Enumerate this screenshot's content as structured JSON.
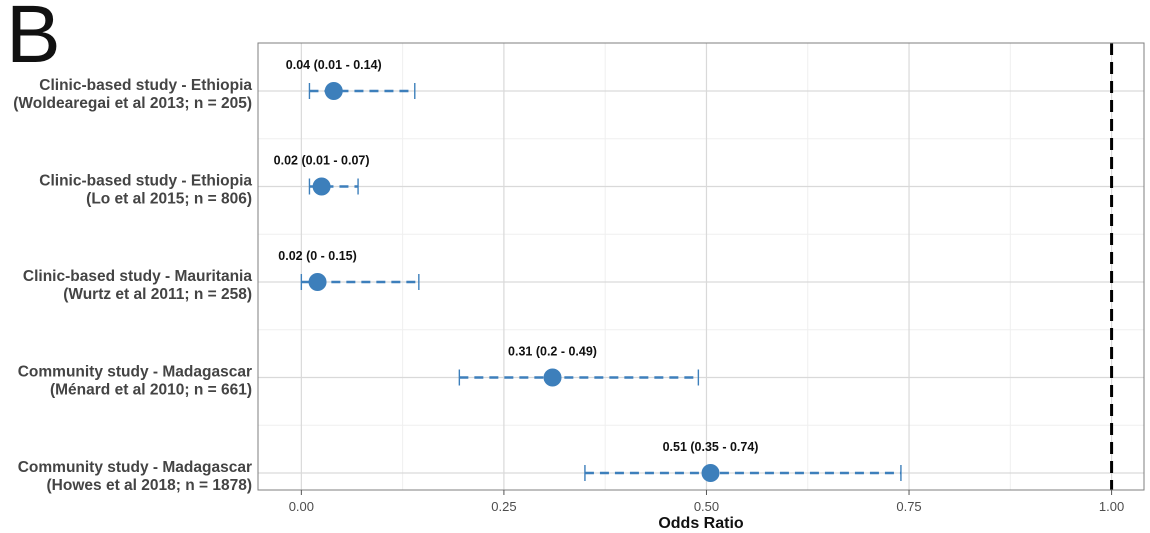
{
  "panel_letter": "B",
  "chart_data": {
    "type": "scatter",
    "subtype": "forest-plot",
    "title": "",
    "xlabel": "Odds Ratio",
    "ylabel": "",
    "xlim": [
      -0.0535,
      1.04
    ],
    "x_ticks": [
      0.0,
      0.25,
      0.5,
      0.75,
      1.0
    ],
    "x_tick_labels": [
      "0.00",
      "0.25",
      "0.50",
      "0.75",
      "1.00"
    ],
    "grid": true,
    "reference_line": 1.0,
    "colors": {
      "point": "#3d7fbb",
      "reference": "#000000",
      "grid": "#d9d9d9"
    },
    "studies": [
      {
        "line1": "Clinic-based study - Ethiopia",
        "line2": "(Woldearegai et al 2013; n = 205)",
        "estimate": 0.04,
        "lower": 0.01,
        "upper": 0.14,
        "label": "0.04 (0.01 - 0.14)"
      },
      {
        "line1": "Clinic-based study - Ethiopia",
        "line2": "(Lo et al 2015; n = 806)",
        "estimate": 0.025,
        "lower": 0.01,
        "upper": 0.07,
        "label": "0.02 (0.01 - 0.07)"
      },
      {
        "line1": "Clinic-based study - Mauritania",
        "line2": "(Wurtz et al 2011; n = 258)",
        "estimate": 0.02,
        "lower": 0.0,
        "upper": 0.145,
        "label": "0.02 (0 - 0.15)"
      },
      {
        "line1": "Community study - Madagascar",
        "line2": "(Ménard et al 2010; n = 661)",
        "estimate": 0.31,
        "lower": 0.195,
        "upper": 0.49,
        "label": "0.31 (0.2 - 0.49)"
      },
      {
        "line1": "Community study - Madagascar",
        "line2": "(Howes et al 2018; n = 1878)",
        "estimate": 0.505,
        "lower": 0.35,
        "upper": 0.74,
        "label": "0.51 (0.35 - 0.74)"
      }
    ]
  }
}
